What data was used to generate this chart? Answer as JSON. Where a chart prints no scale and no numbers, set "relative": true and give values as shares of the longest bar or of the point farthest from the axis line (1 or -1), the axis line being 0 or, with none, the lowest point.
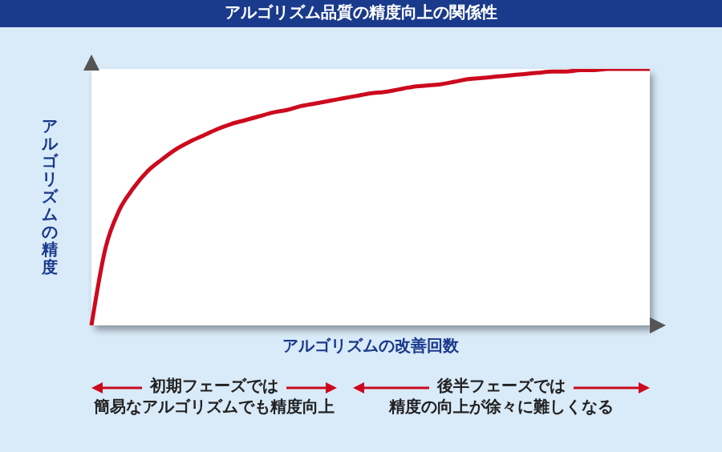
{
  "chart_data": {
    "type": "line",
    "title": "アルゴリズム品質の精度向上の関係性",
    "xlabel": "アルゴリズムの改善回数",
    "ylabel": "アルゴリズムの精度",
    "relative": true,
    "marker": "none",
    "line_style": "solid",
    "categories": [
      null,
      null,
      null,
      null,
      null,
      null,
      null,
      null,
      null,
      null,
      null,
      null,
      null,
      null,
      null,
      null,
      null,
      null,
      null,
      null,
      null,
      null,
      null,
      null,
      null,
      null,
      null,
      null,
      null,
      null,
      null,
      null,
      null,
      null,
      null,
      null,
      null,
      null,
      null,
      null,
      null
    ],
    "series": [
      {
        "color": "#cc0a1e",
        "values": [
          0,
          0.3,
          0.45,
          0.535,
          0.6,
          0.645,
          0.685,
          0.715,
          0.74,
          0.765,
          0.785,
          0.8,
          0.815,
          0.83,
          0.84,
          0.855,
          0.865,
          0.875,
          0.885,
          0.895,
          0.905,
          0.91,
          0.92,
          0.93,
          0.935,
          0.94,
          0.95,
          0.96,
          0.965,
          0.97,
          0.975,
          0.98,
          0.985,
          0.99,
          0.99,
          0.995,
          0.995,
          1,
          1,
          1,
          1
        ]
      }
    ],
    "annotations": [
      "初期フェーズでは",
      "簡易なアルゴリズムでも精度向上",
      "後半フェーズでは",
      "精度の向上が徐々に難しくなる"
    ]
  }
}
